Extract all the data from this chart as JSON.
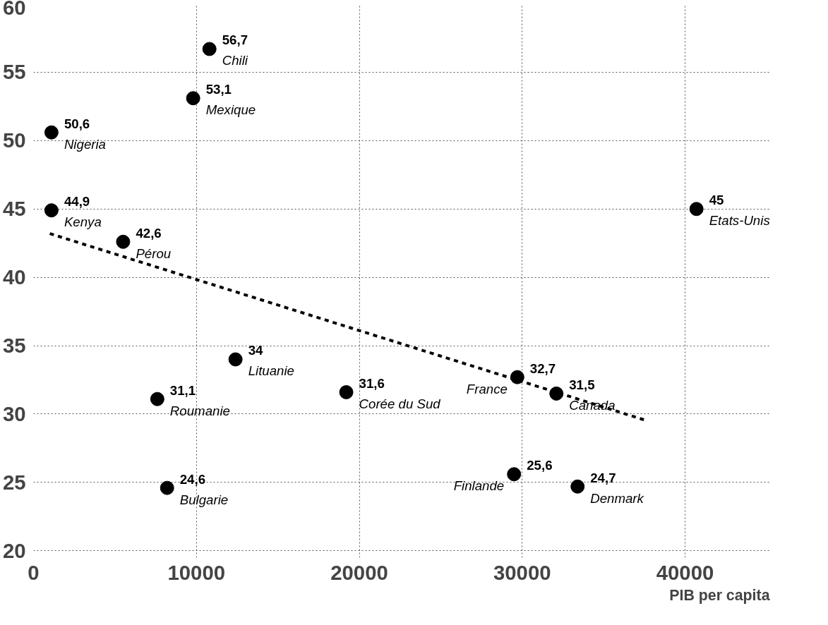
{
  "chart_data": {
    "type": "scatter",
    "xlabel": "PIB per capita",
    "xlim": [
      0,
      45200
    ],
    "ylim": [
      19.5,
      60
    ],
    "xticks": [
      0,
      10000,
      20000,
      30000,
      40000
    ],
    "yticks": [
      20,
      25,
      30,
      35,
      40,
      45,
      50,
      55,
      60
    ],
    "grid": true,
    "marker": "circle",
    "series": [
      {
        "color": "#000000",
        "x": [
          10800,
          9800,
          1100,
          1100,
          5500,
          12400,
          7600,
          8200,
          19200,
          29700,
          32100,
          29500,
          33400,
          40700
        ],
        "values": [
          56.7,
          53.1,
          50.6,
          44.9,
          42.6,
          34,
          31.1,
          24.6,
          31.6,
          32.7,
          31.5,
          25.6,
          24.7,
          45
        ],
        "value_labels": [
          "56,7",
          "53,1",
          "50,6",
          "44,9",
          "42,6",
          "34",
          "31,1",
          "24,6",
          "31,6",
          "32,7",
          "31,5",
          "25,6",
          "24,7",
          "45"
        ]
      },
      {
        "type": "line",
        "color": "#000000",
        "line_style": "dashed",
        "marker": "none",
        "x": [
          1000,
          37700
        ],
        "values": [
          43.2,
          29.5
        ]
      }
    ],
    "annotations": [
      {
        "text": "Chili",
        "x": 10800,
        "y": 56.7
      },
      {
        "text": "Mexique",
        "x": 9800,
        "y": 53.1
      },
      {
        "text": "Nigeria",
        "x": 1100,
        "y": 50.6
      },
      {
        "text": "Kenya",
        "x": 1100,
        "y": 44.9
      },
      {
        "text": "Pérou",
        "x": 5500,
        "y": 42.6
      },
      {
        "text": "Lituanie",
        "x": 12400,
        "y": 34
      },
      {
        "text": "Roumanie",
        "x": 7600,
        "y": 31.1
      },
      {
        "text": "Bulgarie",
        "x": 8200,
        "y": 24.6
      },
      {
        "text": "Corée du Sud",
        "x": 19200,
        "y": 31.6
      },
      {
        "text": "France",
        "x": 29700,
        "y": 32.7
      },
      {
        "text": "Canada",
        "x": 32100,
        "y": 31.5
      },
      {
        "text": "Finlande",
        "x": 29500,
        "y": 25.6
      },
      {
        "text": "Denmark",
        "x": 33400,
        "y": 24.7
      },
      {
        "text": "Etats-Unis",
        "x": 40700,
        "y": 45
      }
    ]
  }
}
